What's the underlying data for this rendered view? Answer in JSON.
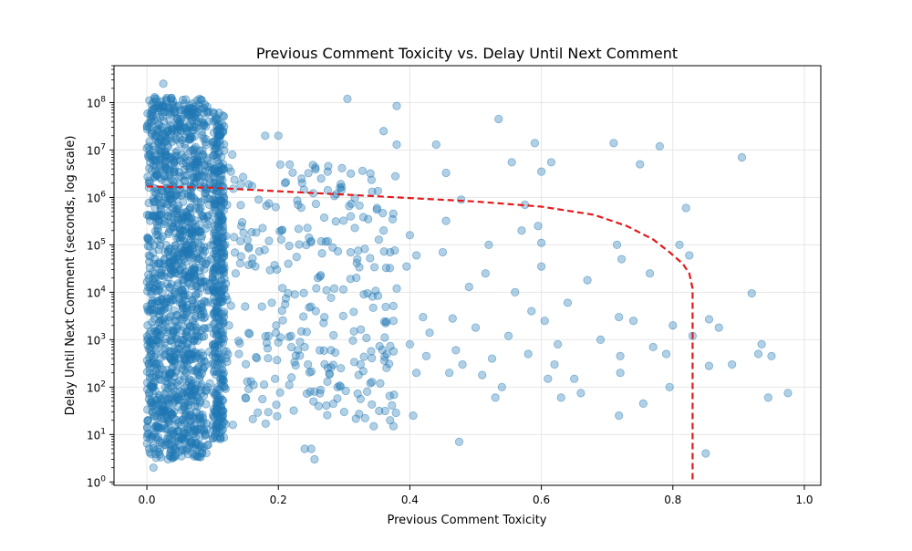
{
  "chart_data": {
    "type": "scatter",
    "title": "Previous Comment Toxicity vs. Delay Until Next Comment",
    "xlabel": "Previous Comment Toxicity",
    "ylabel": "Delay Until Next Comment (seconds, log scale)",
    "xlim": [
      -0.05,
      1.025
    ],
    "ylim": [
      0.85,
      600000000
    ],
    "yscale": "log",
    "grid": true,
    "x_ticks": [
      {
        "value": 0.0,
        "label": "0.0"
      },
      {
        "value": 0.2,
        "label": "0.2"
      },
      {
        "value": 0.4,
        "label": "0.4"
      },
      {
        "value": 0.6,
        "label": "0.6"
      },
      {
        "value": 0.8,
        "label": "0.8"
      },
      {
        "value": 1.0,
        "label": "1.0"
      }
    ],
    "y_ticks": [
      {
        "value": 1,
        "base": "10",
        "exp": "0"
      },
      {
        "value": 10,
        "base": "10",
        "exp": "1"
      },
      {
        "value": 100,
        "base": "10",
        "exp": "2"
      },
      {
        "value": 1000,
        "base": "10",
        "exp": "3"
      },
      {
        "value": 10000,
        "base": "10",
        "exp": "4"
      },
      {
        "value": 100000,
        "base": "10",
        "exp": "5"
      },
      {
        "value": 1000000,
        "base": "10",
        "exp": "6"
      },
      {
        "value": 10000000,
        "base": "10",
        "exp": "7"
      },
      {
        "value": 100000000,
        "base": "10",
        "exp": "8"
      }
    ],
    "colors": {
      "points": "#1f77b4",
      "curve": "#e31a1c",
      "grid": "#e6e6e6"
    },
    "series": [
      {
        "kind": "scatter",
        "points": [
          [
            0.025,
            250000000
          ],
          [
            0.012,
            130000000
          ],
          [
            0.03,
            110000000
          ],
          [
            0.02,
            90000000
          ],
          [
            0.041,
            75000000
          ],
          [
            0.008,
            60000000
          ],
          [
            0.052,
            45000000
          ],
          [
            0.065,
            30000000
          ],
          [
            0.013,
            20000000
          ],
          [
            0.028,
            15000000
          ],
          [
            0.015,
            8000000
          ],
          [
            0.045,
            6000000
          ],
          [
            0.072,
            5000000
          ],
          [
            0.035,
            3000000
          ],
          [
            0.005,
            2000000
          ],
          [
            0.019,
            1000000
          ],
          [
            0.055,
            800000
          ],
          [
            0.082,
            600000
          ],
          [
            0.01,
            400000
          ],
          [
            0.038,
            250000
          ],
          [
            0.024,
            150000
          ],
          [
            0.061,
            90000
          ],
          [
            0.003,
            60000
          ],
          [
            0.017,
            40000
          ],
          [
            0.044,
            25000
          ],
          [
            0.031,
            15000
          ],
          [
            0.007,
            9000
          ],
          [
            0.05,
            6000
          ],
          [
            0.021,
            4000
          ],
          [
            0.07,
            2500
          ],
          [
            0.012,
            1500
          ],
          [
            0.039,
            900
          ],
          [
            0.026,
            600
          ],
          [
            0.058,
            400
          ],
          [
            0.016,
            250
          ],
          [
            0.033,
            150
          ],
          [
            0.009,
            100
          ],
          [
            0.047,
            60
          ],
          [
            0.023,
            40
          ],
          [
            0.066,
            25
          ],
          [
            0.014,
            15
          ],
          [
            0.036,
            10
          ],
          [
            0.028,
            6
          ],
          [
            0.02,
            5
          ],
          [
            0.032,
            3
          ],
          [
            0.01,
            2
          ],
          [
            0.048,
            12
          ],
          [
            0.075,
            30
          ],
          [
            0.09,
            1500000
          ],
          [
            0.095,
            700000
          ],
          [
            0.098,
            50000
          ],
          [
            0.1,
            20000
          ],
          [
            0.102,
            8000
          ],
          [
            0.104,
            3000
          ],
          [
            0.106,
            1200
          ],
          [
            0.108,
            500
          ],
          [
            0.11,
            200
          ],
          [
            0.111,
            90
          ],
          [
            0.113,
            40
          ],
          [
            0.112,
            20000000
          ],
          [
            0.105,
            45000000
          ],
          [
            0.11,
            9000000
          ],
          [
            0.113,
            400000
          ],
          [
            0.109,
            120000
          ],
          [
            0.107,
            30000
          ],
          [
            0.113,
            9000
          ],
          [
            0.103,
            700
          ],
          [
            0.099,
            300
          ],
          [
            0.096,
            120
          ],
          [
            0.112,
            8
          ],
          [
            0.092,
            60000000
          ],
          [
            0.088,
            3500000
          ],
          [
            0.13,
            8000000
          ],
          [
            0.145,
            300000
          ],
          [
            0.16,
            40000
          ],
          [
            0.175,
            5000
          ],
          [
            0.185,
            1200
          ],
          [
            0.195,
            150
          ],
          [
            0.15,
            60
          ],
          [
            0.14,
            500
          ],
          [
            0.125,
            2000
          ],
          [
            0.135,
            25000
          ],
          [
            0.155,
            90000
          ],
          [
            0.17,
            900000
          ],
          [
            0.18,
            20000000
          ],
          [
            0.2,
            20000000
          ],
          [
            0.19,
            6000
          ],
          [
            0.165,
            35000
          ],
          [
            0.147,
            180000
          ],
          [
            0.122,
            700000
          ],
          [
            0.205,
            200000
          ],
          [
            0.215,
            40000
          ],
          [
            0.225,
            9000
          ],
          [
            0.235,
            1500
          ],
          [
            0.245,
            300
          ],
          [
            0.255,
            80
          ],
          [
            0.21,
            2000000
          ],
          [
            0.23,
            700000
          ],
          [
            0.25,
            120000
          ],
          [
            0.26,
            20000
          ],
          [
            0.24,
            700
          ],
          [
            0.22,
            160
          ],
          [
            0.27,
            3000
          ],
          [
            0.28,
            600
          ],
          [
            0.29,
            100
          ],
          [
            0.3,
            30
          ],
          [
            0.265,
            2500000
          ],
          [
            0.275,
            3500000
          ],
          [
            0.285,
            12000
          ],
          [
            0.295,
            250
          ],
          [
            0.305,
            120000000
          ],
          [
            0.31,
            400000
          ],
          [
            0.32,
            50000
          ],
          [
            0.33,
            9000
          ],
          [
            0.315,
            1500
          ],
          [
            0.325,
            300
          ],
          [
            0.335,
            80
          ],
          [
            0.345,
            15
          ],
          [
            0.34,
            3200000
          ],
          [
            0.35,
            600000
          ],
          [
            0.36,
            200000
          ],
          [
            0.37,
            70000
          ],
          [
            0.38,
            12000
          ],
          [
            0.375,
            2500
          ],
          [
            0.365,
            500
          ],
          [
            0.355,
            120
          ],
          [
            0.24,
            5
          ],
          [
            0.25,
            5
          ],
          [
            0.255,
            3
          ],
          [
            0.38,
            85000000
          ],
          [
            0.38,
            13000000
          ],
          [
            0.36,
            25000000
          ],
          [
            0.37,
            20
          ],
          [
            0.375,
            15
          ],
          [
            0.378,
            2800000
          ],
          [
            0.395,
            35000
          ],
          [
            0.4,
            160000
          ],
          [
            0.41,
            60000
          ],
          [
            0.4,
            800
          ],
          [
            0.41,
            200
          ],
          [
            0.405,
            25
          ],
          [
            0.42,
            3000
          ],
          [
            0.425,
            450
          ],
          [
            0.43,
            1400
          ],
          [
            0.44,
            13000000
          ],
          [
            0.45,
            70000
          ],
          [
            0.455,
            320000
          ],
          [
            0.455,
            3300000
          ],
          [
            0.46,
            200
          ],
          [
            0.465,
            2800
          ],
          [
            0.47,
            600
          ],
          [
            0.475,
            7
          ],
          [
            0.478,
            900000
          ],
          [
            0.48,
            300
          ],
          [
            0.49,
            13000
          ],
          [
            0.5,
            1800
          ],
          [
            0.51,
            180
          ],
          [
            0.515,
            25000
          ],
          [
            0.52,
            100000
          ],
          [
            0.525,
            400
          ],
          [
            0.53,
            60
          ],
          [
            0.535,
            45000000
          ],
          [
            0.54,
            100
          ],
          [
            0.55,
            1200
          ],
          [
            0.555,
            5500000
          ],
          [
            0.56,
            10000
          ],
          [
            0.57,
            200000
          ],
          [
            0.575,
            700000
          ],
          [
            0.58,
            500
          ],
          [
            0.585,
            4000
          ],
          [
            0.59,
            14000000
          ],
          [
            0.595,
            250000
          ],
          [
            0.6,
            3500000
          ],
          [
            0.6,
            110000
          ],
          [
            0.6,
            35000
          ],
          [
            0.605,
            2500
          ],
          [
            0.61,
            150
          ],
          [
            0.615,
            5500000
          ],
          [
            0.62,
            300
          ],
          [
            0.625,
            800
          ],
          [
            0.63,
            60
          ],
          [
            0.64,
            6000
          ],
          [
            0.65,
            150
          ],
          [
            0.66,
            75
          ],
          [
            0.67,
            18000
          ],
          [
            0.69,
            1000
          ],
          [
            0.71,
            14000000
          ],
          [
            0.715,
            100000
          ],
          [
            0.718,
            3000
          ],
          [
            0.72,
            450
          ],
          [
            0.718,
            25
          ],
          [
            0.72,
            200
          ],
          [
            0.722,
            50000
          ],
          [
            0.74,
            2500
          ],
          [
            0.75,
            5000000
          ],
          [
            0.755,
            45
          ],
          [
            0.765,
            25000
          ],
          [
            0.77,
            700
          ],
          [
            0.78,
            12000000
          ],
          [
            0.79,
            500
          ],
          [
            0.795,
            100
          ],
          [
            0.8,
            2000
          ],
          [
            0.81,
            100000
          ],
          [
            0.82,
            600000
          ],
          [
            0.825,
            60000
          ],
          [
            0.83,
            1200
          ],
          [
            0.85,
            4
          ],
          [
            0.855,
            2700
          ],
          [
            0.855,
            280
          ],
          [
            0.87,
            1800
          ],
          [
            0.89,
            300
          ],
          [
            0.905,
            7000000
          ],
          [
            0.92,
            9500
          ],
          [
            0.93,
            500
          ],
          [
            0.935,
            800
          ],
          [
            0.945,
            60
          ],
          [
            0.95,
            450
          ],
          [
            0.975,
            75
          ]
        ]
      },
      {
        "kind": "line",
        "style": "dashed",
        "points": [
          [
            0.0,
            1700000
          ],
          [
            0.1,
            1600000
          ],
          [
            0.2,
            1350000
          ],
          [
            0.3,
            1150000
          ],
          [
            0.4,
            970000
          ],
          [
            0.5,
            820000
          ],
          [
            0.6,
            640000
          ],
          [
            0.68,
            430000
          ],
          [
            0.73,
            250000
          ],
          [
            0.77,
            130000
          ],
          [
            0.795,
            70000
          ],
          [
            0.815,
            40000
          ],
          [
            0.825,
            25000
          ],
          [
            0.83,
            12000
          ],
          [
            0.83,
            1
          ]
        ]
      }
    ]
  }
}
